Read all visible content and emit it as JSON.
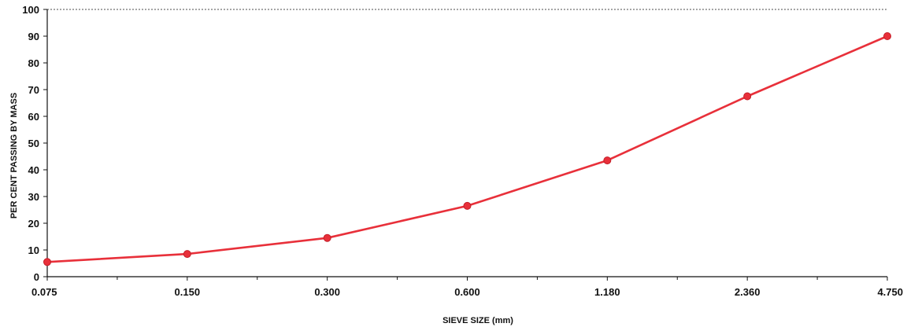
{
  "chart_data": {
    "type": "line",
    "categories": [
      "0.075",
      "0.150",
      "0.300",
      "0.600",
      "1.180",
      "2.360",
      "4.750"
    ],
    "series": [
      {
        "values": [
          5.5,
          8.5,
          14.5,
          26.5,
          43.5,
          67.5,
          90
        ]
      }
    ],
    "yticks": [
      "0",
      "10",
      "20",
      "30",
      "40",
      "50",
      "60",
      "70",
      "80",
      "90",
      "100"
    ],
    "ylim": [
      0,
      100
    ],
    "xlabel": "SIEVE SIZE (mm)",
    "ylabel": "PER CENT PASSING BY MASS",
    "grid": false,
    "colors": {
      "line": "#e8303a",
      "marker": "#e8303a",
      "axis": "#111111"
    }
  }
}
